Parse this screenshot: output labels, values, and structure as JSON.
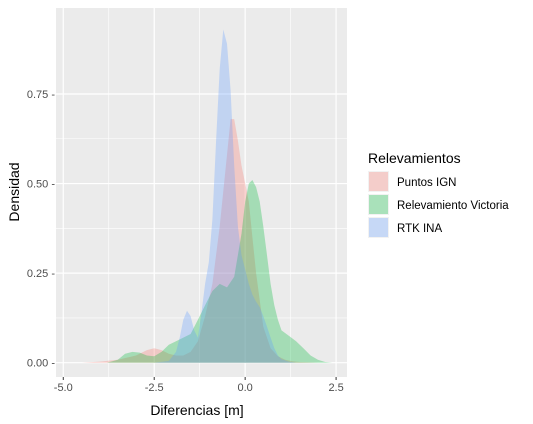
{
  "chart_data": {
    "type": "area",
    "subtype": "density",
    "xlabel": "Diferencias [m]",
    "ylabel": "Densidad",
    "xlim": [
      -5.2,
      2.8
    ],
    "ylim": [
      -0.04,
      0.99
    ],
    "x_ticks": [
      -5.0,
      -2.5,
      0.0,
      2.5
    ],
    "x_tick_labels": [
      "-5.0",
      "-2.5",
      "0.0",
      "2.5"
    ],
    "y_ticks": [
      0.0,
      0.25,
      0.5,
      0.75
    ],
    "y_tick_labels": [
      "0.00 -",
      "0.25 -",
      "0.50 -",
      "0.75 -"
    ],
    "grid": true,
    "legend": {
      "title": "Relevamientos",
      "placement": "right"
    },
    "series": [
      {
        "name": "Puntos IGN",
        "color": "#F8766D",
        "x": [
          -5.0,
          -4.5,
          -4.0,
          -3.5,
          -3.0,
          -2.7,
          -2.5,
          -2.3,
          -2.1,
          -1.9,
          -1.7,
          -1.5,
          -1.3,
          -1.1,
          -0.9,
          -0.7,
          -0.5,
          -0.4,
          -0.3,
          -0.2,
          -0.1,
          0.0,
          0.1,
          0.2,
          0.3,
          0.5,
          0.7,
          0.9,
          1.1,
          1.3,
          1.5,
          1.7,
          2.0
        ],
        "y": [
          0.0,
          0.0,
          0.003,
          0.008,
          0.02,
          0.035,
          0.04,
          0.035,
          0.025,
          0.02,
          0.02,
          0.03,
          0.06,
          0.13,
          0.22,
          0.38,
          0.58,
          0.68,
          0.68,
          0.62,
          0.55,
          0.5,
          0.45,
          0.35,
          0.25,
          0.1,
          0.04,
          0.018,
          0.008,
          0.004,
          0.002,
          0.001,
          0.0
        ]
      },
      {
        "name": "Relevamiento Victoria",
        "color": "#00BA38",
        "x": [
          -3.8,
          -3.5,
          -3.3,
          -3.1,
          -2.9,
          -2.7,
          -2.5,
          -2.3,
          -2.1,
          -1.9,
          -1.7,
          -1.5,
          -1.3,
          -1.1,
          -0.9,
          -0.7,
          -0.5,
          -0.3,
          -0.1,
          0.0,
          0.1,
          0.2,
          0.3,
          0.4,
          0.5,
          0.6,
          0.7,
          0.8,
          0.9,
          1.0,
          1.2,
          1.4,
          1.6,
          1.8,
          2.0,
          2.2,
          2.4
        ],
        "y": [
          0.0,
          0.008,
          0.025,
          0.03,
          0.028,
          0.02,
          0.018,
          0.03,
          0.05,
          0.06,
          0.07,
          0.08,
          0.12,
          0.16,
          0.2,
          0.22,
          0.21,
          0.24,
          0.36,
          0.45,
          0.5,
          0.51,
          0.49,
          0.45,
          0.38,
          0.3,
          0.22,
          0.16,
          0.12,
          0.09,
          0.075,
          0.06,
          0.04,
          0.02,
          0.008,
          0.002,
          0.0
        ]
      },
      {
        "name": "RTK INA",
        "color": "#619CFF",
        "x": [
          -2.5,
          -2.1,
          -1.9,
          -1.8,
          -1.7,
          -1.6,
          -1.5,
          -1.4,
          -1.3,
          -1.2,
          -1.1,
          -1.0,
          -0.9,
          -0.8,
          -0.7,
          -0.6,
          -0.5,
          -0.4,
          -0.3,
          -0.2,
          -0.1,
          0.0,
          0.1,
          0.2,
          0.3,
          0.4,
          0.5,
          0.6,
          0.7,
          0.8,
          0.9,
          1.0,
          1.2,
          1.4
        ],
        "y": [
          0.0,
          0.005,
          0.03,
          0.07,
          0.12,
          0.145,
          0.13,
          0.09,
          0.07,
          0.14,
          0.22,
          0.28,
          0.4,
          0.62,
          0.82,
          0.93,
          0.89,
          0.76,
          0.55,
          0.38,
          0.3,
          0.26,
          0.22,
          0.19,
          0.17,
          0.155,
          0.13,
          0.1,
          0.07,
          0.04,
          0.02,
          0.01,
          0.003,
          0.0
        ]
      }
    ]
  }
}
